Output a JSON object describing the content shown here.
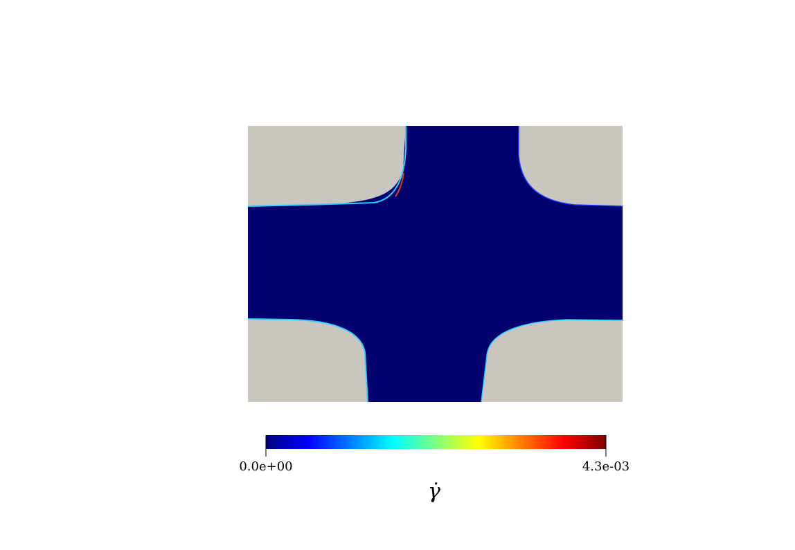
{
  "colors": {
    "background": "#ffffff",
    "solid_region": "#c8c6bf",
    "fluid_region": "#00006e",
    "edge_cyan": "#2fd0ff",
    "edge_red": "#e23c14",
    "colormap": [
      "#00007f",
      "#0000ff",
      "#007fff",
      "#00ffff",
      "#7fff7f",
      "#ffff00",
      "#ff7f00",
      "#ff0000",
      "#7f0000"
    ]
  },
  "field_plot": {
    "colormap": "jet",
    "field_value": 0.0
  },
  "colorbar": {
    "min": 0.0,
    "max": 0.0043,
    "min_label": "0.0e+00",
    "max_label": "4.3e-03",
    "title": "γ̇"
  }
}
